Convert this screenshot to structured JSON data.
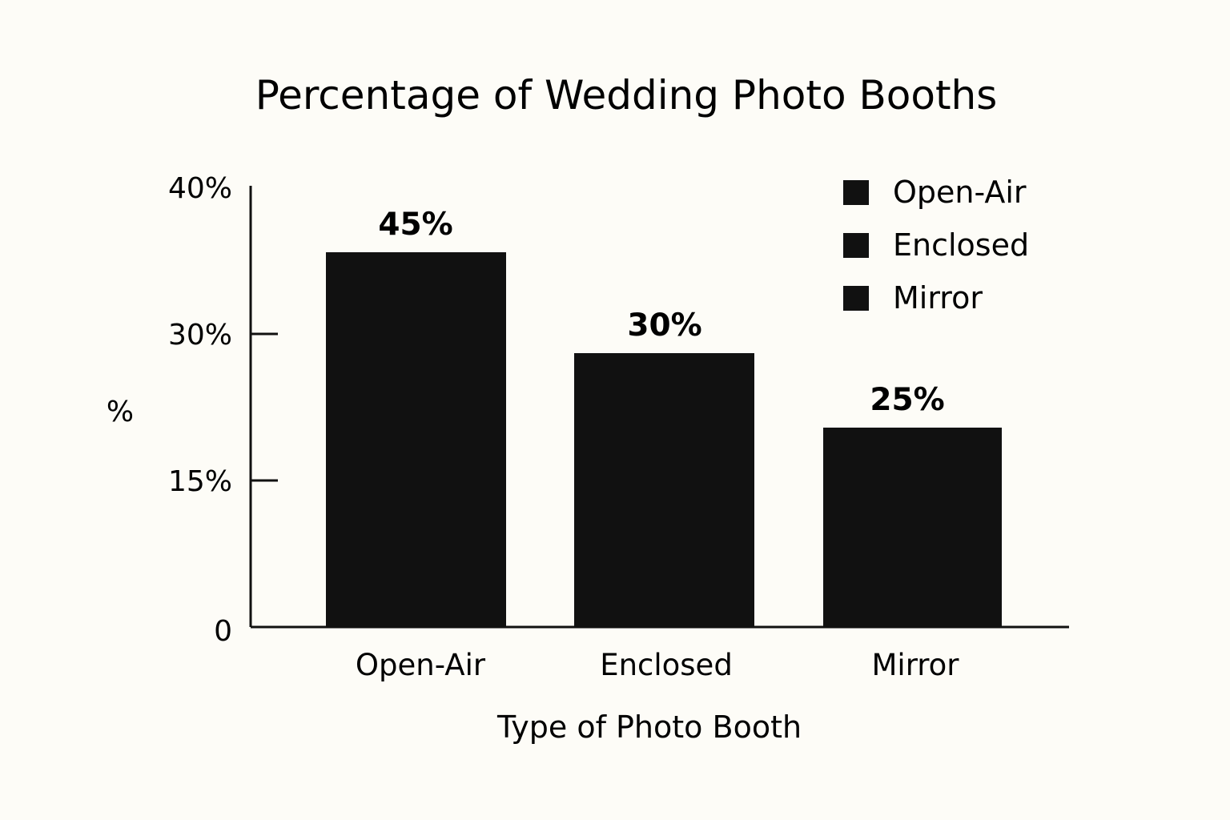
{
  "chart_data": {
    "type": "bar",
    "title": "Percentage of Wedding Photo Booths",
    "xlabel": "Type of Photo Booth",
    "ylabel": "%",
    "categories": [
      "Open-Air",
      "Enclosed",
      "Mirror"
    ],
    "values": [
      45,
      30,
      25
    ],
    "data_labels": [
      "45%",
      "30%",
      "25%"
    ],
    "y_ticks": [
      {
        "label": "0"
      },
      {
        "label": "15%"
      },
      {
        "label": "30%"
      },
      {
        "label": "40%"
      }
    ],
    "legend": {
      "placement": "top-right",
      "entries": [
        "Open-Air",
        "Enclosed",
        "Mirror"
      ]
    },
    "grid": false,
    "colors": {
      "bar": "#111111",
      "axis": "#111111",
      "background": "#fdfcf7"
    }
  }
}
